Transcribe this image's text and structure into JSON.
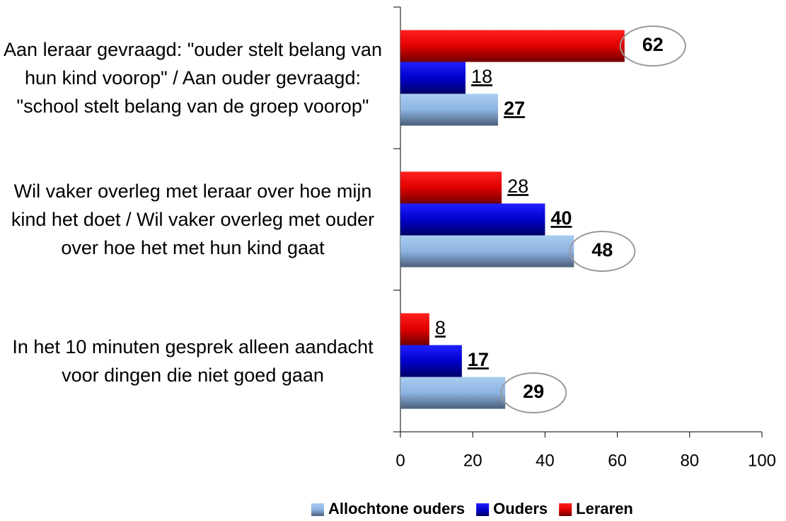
{
  "chart_data": {
    "type": "bar",
    "orientation": "horizontal",
    "categories": [
      "Aan leraar gevraagd: \"ouder stelt belang van hun kind voorop\" / Aan ouder gevraagd: \"school stelt belang van de groep voorop\"",
      "Wil vaker overleg met leraar over hoe mijn kind het doet  / Wil vaker overleg met ouder over hoe het met hun kind gaat",
      "In het 10 minuten gesprek alleen aandacht voor dingen die niet goed gaan"
    ],
    "series": [
      {
        "name": "Allochtone ouders",
        "color": "#8db4e2",
        "values": [
          27,
          48,
          29
        ],
        "bold": [
          true,
          true,
          true
        ],
        "circled": [
          false,
          true,
          true
        ]
      },
      {
        "name": "Ouders",
        "color": "#0000cc",
        "values": [
          18,
          40,
          17
        ],
        "bold": [
          false,
          true,
          true
        ],
        "circled": [
          false,
          false,
          false
        ]
      },
      {
        "name": "Leraren",
        "color": "#e00000",
        "values": [
          62,
          28,
          8
        ],
        "bold": [
          true,
          false,
          false
        ],
        "circled": [
          true,
          false,
          false
        ]
      }
    ],
    "xlim": [
      0,
      100
    ],
    "xticks": [
      0,
      20,
      40,
      60,
      80,
      100
    ],
    "legend": "bottom"
  }
}
